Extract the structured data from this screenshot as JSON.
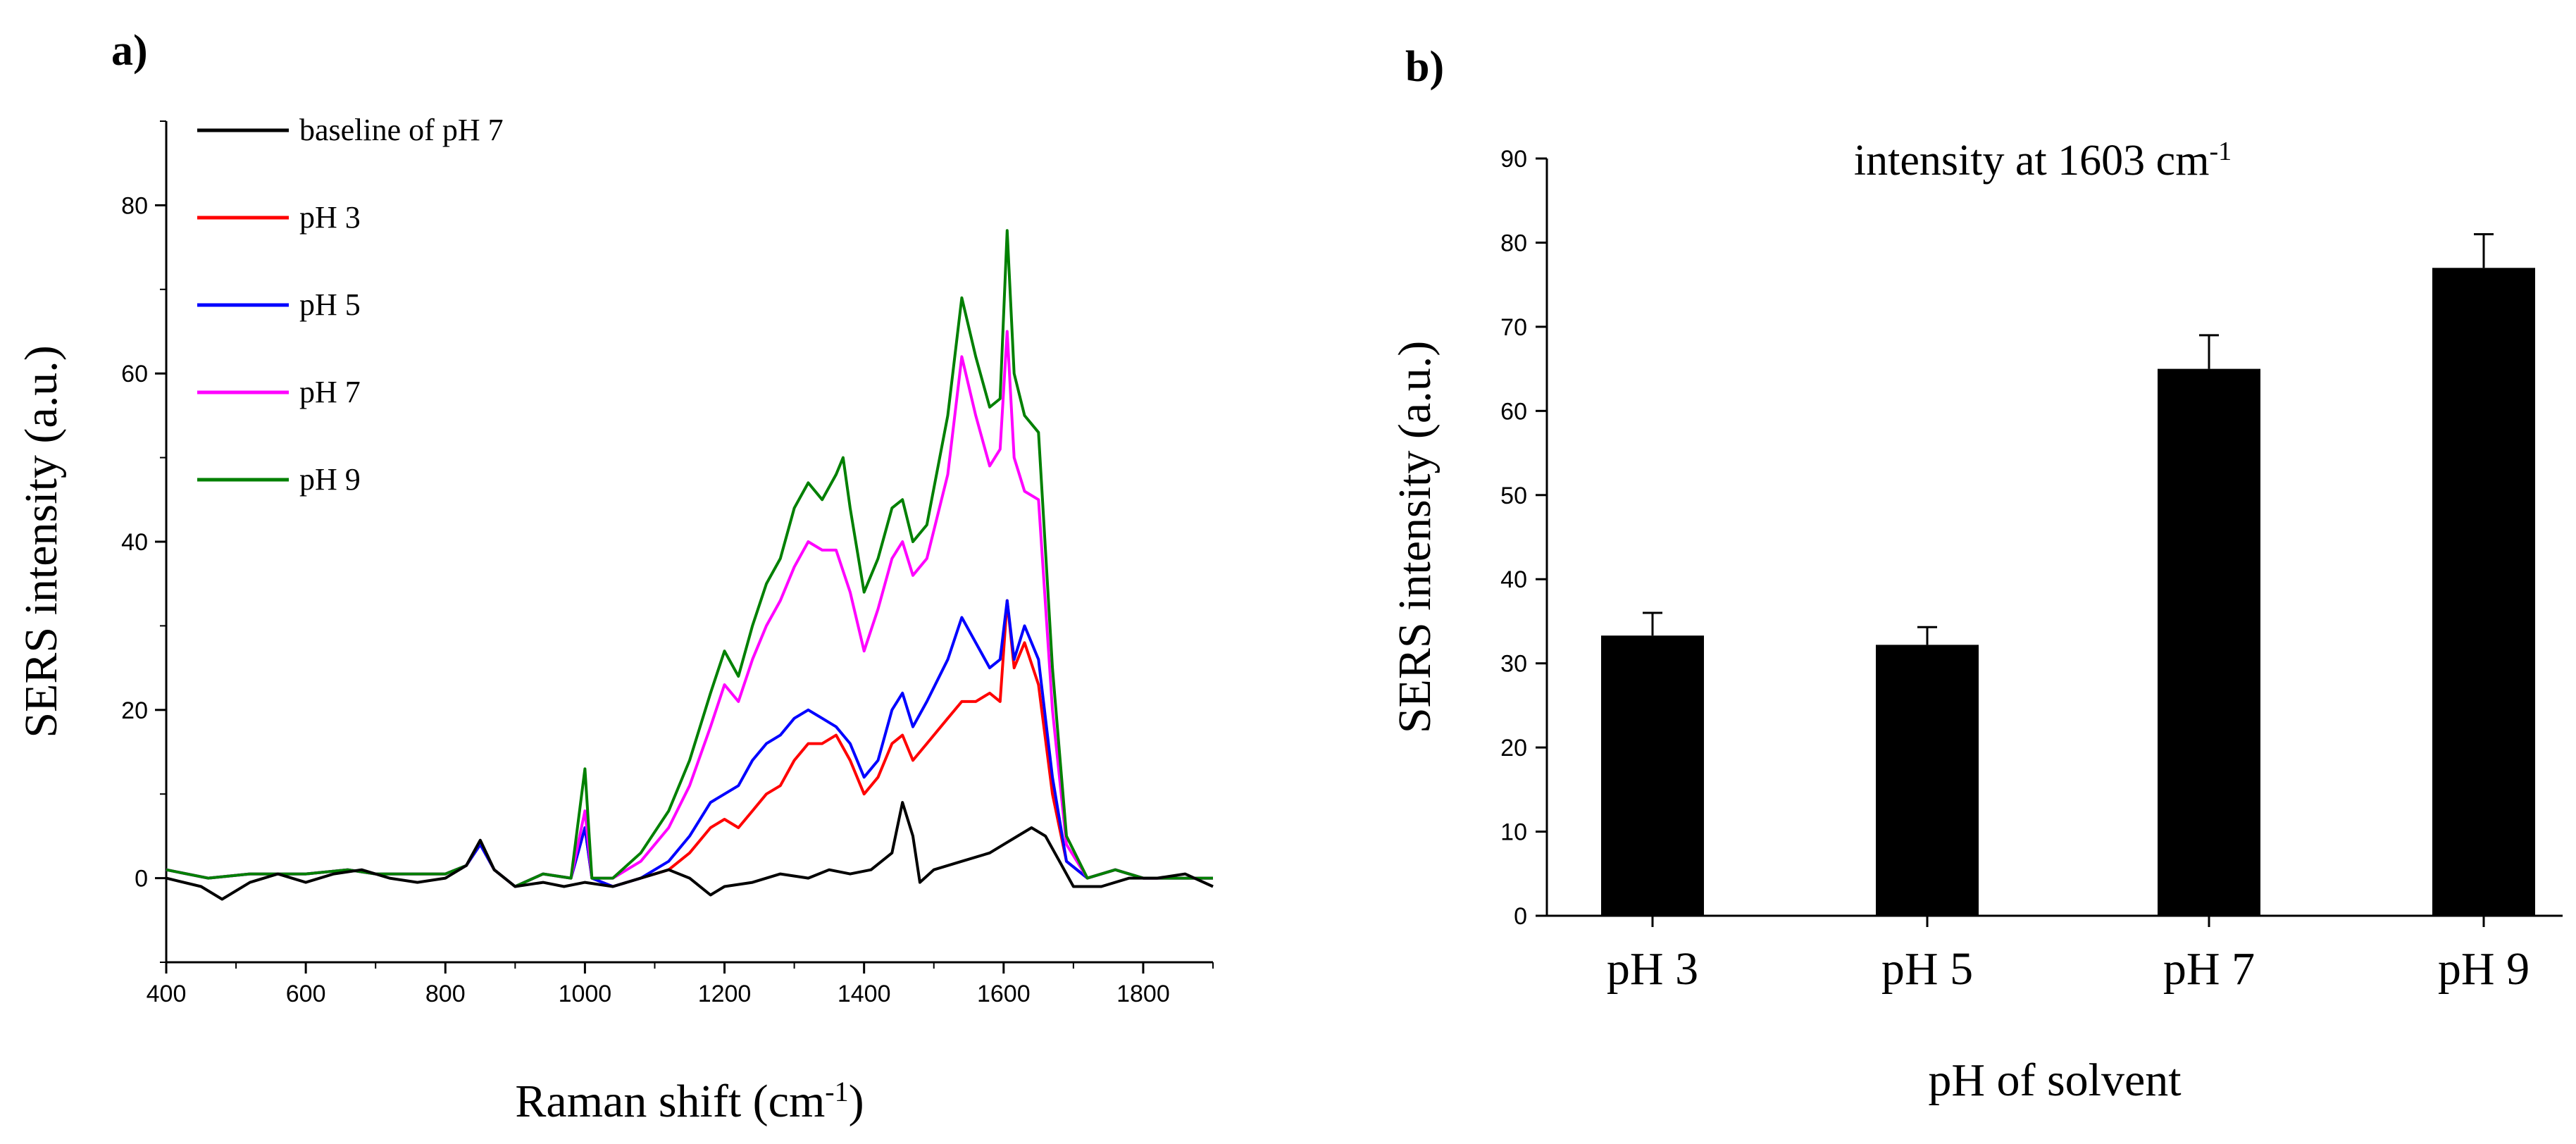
{
  "figure": {
    "label_a": "a)",
    "label_b": "b)"
  },
  "chart_data": [
    {
      "type": "line",
      "panel": "a",
      "title": "",
      "xlabel": "Raman  shift  (cm",
      "xlabel_sup": "-1",
      "xlabel_close": ")",
      "ylabel": "SERS intensity  (a.u.)",
      "xlim": [
        400,
        1900
      ],
      "ylim": [
        -10,
        90
      ],
      "xticks": [
        400,
        600,
        800,
        1000,
        1200,
        1400,
        1600,
        1800
      ],
      "yticks": [
        0,
        20,
        40,
        60,
        80
      ],
      "legend_position": "top-left",
      "series": [
        {
          "name": "baseline of pH 7",
          "color": "#000000",
          "points": [
            [
              400,
              0
            ],
            [
              450,
              -1
            ],
            [
              480,
              -2.5
            ],
            [
              520,
              -0.5
            ],
            [
              560,
              0.5
            ],
            [
              600,
              -0.5
            ],
            [
              640,
              0.5
            ],
            [
              680,
              1
            ],
            [
              720,
              0
            ],
            [
              760,
              -0.5
            ],
            [
              800,
              0
            ],
            [
              830,
              1.5
            ],
            [
              850,
              4.5
            ],
            [
              870,
              1
            ],
            [
              900,
              -1
            ],
            [
              940,
              -0.5
            ],
            [
              970,
              -1
            ],
            [
              1000,
              -0.5
            ],
            [
              1040,
              -1
            ],
            [
              1080,
              0
            ],
            [
              1120,
              1
            ],
            [
              1150,
              0
            ],
            [
              1180,
              -2
            ],
            [
              1200,
              -1
            ],
            [
              1240,
              -0.5
            ],
            [
              1280,
              0.5
            ],
            [
              1320,
              0
            ],
            [
              1350,
              1
            ],
            [
              1380,
              0.5
            ],
            [
              1410,
              1
            ],
            [
              1440,
              3
            ],
            [
              1455,
              9
            ],
            [
              1470,
              5
            ],
            [
              1480,
              -0.5
            ],
            [
              1500,
              1
            ],
            [
              1540,
              2
            ],
            [
              1580,
              3
            ],
            [
              1600,
              4
            ],
            [
              1620,
              5
            ],
            [
              1640,
              6
            ],
            [
              1660,
              5
            ],
            [
              1680,
              2
            ],
            [
              1700,
              -1
            ],
            [
              1740,
              -1
            ],
            [
              1780,
              0
            ],
            [
              1820,
              0
            ],
            [
              1860,
              0.5
            ],
            [
              1900,
              -1
            ]
          ]
        },
        {
          "name": "pH 3",
          "color": "#ff0000",
          "points": [
            [
              400,
              1
            ],
            [
              460,
              0
            ],
            [
              520,
              0.5
            ],
            [
              600,
              0.5
            ],
            [
              660,
              1
            ],
            [
              700,
              0.5
            ],
            [
              760,
              0.5
            ],
            [
              800,
              0.5
            ],
            [
              830,
              1.5
            ],
            [
              850,
              4
            ],
            [
              870,
              1
            ],
            [
              900,
              -1
            ],
            [
              940,
              0.5
            ],
            [
              980,
              0
            ],
            [
              1000,
              6
            ],
            [
              1010,
              0
            ],
            [
              1040,
              -1
            ],
            [
              1080,
              0
            ],
            [
              1120,
              1
            ],
            [
              1150,
              3
            ],
            [
              1180,
              6
            ],
            [
              1200,
              7
            ],
            [
              1220,
              6
            ],
            [
              1240,
              8
            ],
            [
              1260,
              10
            ],
            [
              1280,
              11
            ],
            [
              1300,
              14
            ],
            [
              1320,
              16
            ],
            [
              1340,
              16
            ],
            [
              1360,
              17
            ],
            [
              1380,
              14
            ],
            [
              1400,
              10
            ],
            [
              1420,
              12
            ],
            [
              1440,
              16
            ],
            [
              1455,
              17
            ],
            [
              1470,
              14
            ],
            [
              1490,
              16
            ],
            [
              1520,
              19
            ],
            [
              1540,
              21
            ],
            [
              1560,
              21
            ],
            [
              1580,
              22
            ],
            [
              1595,
              21
            ],
            [
              1605,
              33
            ],
            [
              1615,
              25
            ],
            [
              1630,
              28
            ],
            [
              1650,
              23
            ],
            [
              1670,
              10
            ],
            [
              1690,
              2
            ],
            [
              1720,
              0
            ],
            [
              1760,
              1
            ],
            [
              1800,
              0
            ],
            [
              1850,
              0
            ],
            [
              1900,
              0
            ]
          ]
        },
        {
          "name": "pH 5",
          "color": "#0000ff",
          "points": [
            [
              400,
              1
            ],
            [
              460,
              0
            ],
            [
              520,
              0.5
            ],
            [
              600,
              0.5
            ],
            [
              660,
              1
            ],
            [
              700,
              0.5
            ],
            [
              760,
              0.5
            ],
            [
              800,
              0.5
            ],
            [
              830,
              1.5
            ],
            [
              850,
              4
            ],
            [
              870,
              1
            ],
            [
              900,
              -1
            ],
            [
              940,
              0.5
            ],
            [
              980,
              0
            ],
            [
              1000,
              6
            ],
            [
              1010,
              0
            ],
            [
              1040,
              -1
            ],
            [
              1080,
              0
            ],
            [
              1120,
              2
            ],
            [
              1150,
              5
            ],
            [
              1180,
              9
            ],
            [
              1200,
              10
            ],
            [
              1220,
              11
            ],
            [
              1240,
              14
            ],
            [
              1260,
              16
            ],
            [
              1280,
              17
            ],
            [
              1300,
              19
            ],
            [
              1320,
              20
            ],
            [
              1340,
              19
            ],
            [
              1360,
              18
            ],
            [
              1380,
              16
            ],
            [
              1400,
              12
            ],
            [
              1420,
              14
            ],
            [
              1440,
              20
            ],
            [
              1455,
              22
            ],
            [
              1470,
              18
            ],
            [
              1490,
              21
            ],
            [
              1520,
              26
            ],
            [
              1540,
              31
            ],
            [
              1560,
              28
            ],
            [
              1580,
              25
            ],
            [
              1595,
              26
            ],
            [
              1605,
              33
            ],
            [
              1615,
              26
            ],
            [
              1630,
              30
            ],
            [
              1650,
              26
            ],
            [
              1670,
              12
            ],
            [
              1690,
              2
            ],
            [
              1720,
              0
            ],
            [
              1760,
              1
            ],
            [
              1800,
              0
            ],
            [
              1850,
              0
            ],
            [
              1900,
              0
            ]
          ]
        },
        {
          "name": "pH 7",
          "color": "#ff00ff",
          "points": [
            [
              400,
              1
            ],
            [
              460,
              0
            ],
            [
              520,
              0.5
            ],
            [
              600,
              0.5
            ],
            [
              660,
              1
            ],
            [
              700,
              0.5
            ],
            [
              760,
              0.5
            ],
            [
              800,
              0.5
            ],
            [
              830,
              1.5
            ],
            [
              850,
              4.5
            ],
            [
              870,
              1
            ],
            [
              900,
              -1
            ],
            [
              940,
              0.5
            ],
            [
              980,
              0
            ],
            [
              1000,
              8
            ],
            [
              1010,
              0
            ],
            [
              1040,
              0
            ],
            [
              1080,
              2
            ],
            [
              1120,
              6
            ],
            [
              1150,
              11
            ],
            [
              1180,
              18
            ],
            [
              1200,
              23
            ],
            [
              1220,
              21
            ],
            [
              1240,
              26
            ],
            [
              1260,
              30
            ],
            [
              1280,
              33
            ],
            [
              1300,
              37
            ],
            [
              1320,
              40
            ],
            [
              1340,
              39
            ],
            [
              1360,
              39
            ],
            [
              1380,
              34
            ],
            [
              1400,
              27
            ],
            [
              1420,
              32
            ],
            [
              1440,
              38
            ],
            [
              1455,
              40
            ],
            [
              1470,
              36
            ],
            [
              1490,
              38
            ],
            [
              1520,
              48
            ],
            [
              1540,
              62
            ],
            [
              1560,
              55
            ],
            [
              1580,
              49
            ],
            [
              1595,
              51
            ],
            [
              1605,
              65
            ],
            [
              1615,
              50
            ],
            [
              1630,
              46
            ],
            [
              1650,
              45
            ],
            [
              1670,
              20
            ],
            [
              1690,
              4
            ],
            [
              1720,
              0
            ],
            [
              1760,
              1
            ],
            [
              1800,
              0
            ],
            [
              1850,
              0
            ],
            [
              1900,
              0
            ]
          ]
        },
        {
          "name": "pH 9",
          "color": "#008000",
          "points": [
            [
              400,
              1
            ],
            [
              460,
              0
            ],
            [
              520,
              0.5
            ],
            [
              600,
              0.5
            ],
            [
              660,
              1
            ],
            [
              700,
              0.5
            ],
            [
              760,
              0.5
            ],
            [
              800,
              0.5
            ],
            [
              830,
              1.5
            ],
            [
              850,
              4.5
            ],
            [
              870,
              1
            ],
            [
              900,
              -1
            ],
            [
              940,
              0.5
            ],
            [
              980,
              0
            ],
            [
              1000,
              13
            ],
            [
              1010,
              0
            ],
            [
              1040,
              0
            ],
            [
              1080,
              3
            ],
            [
              1120,
              8
            ],
            [
              1150,
              14
            ],
            [
              1180,
              22
            ],
            [
              1200,
              27
            ],
            [
              1220,
              24
            ],
            [
              1240,
              30
            ],
            [
              1260,
              35
            ],
            [
              1280,
              38
            ],
            [
              1300,
              44
            ],
            [
              1320,
              47
            ],
            [
              1340,
              45
            ],
            [
              1360,
              48
            ],
            [
              1370,
              50
            ],
            [
              1380,
              44
            ],
            [
              1400,
              34
            ],
            [
              1420,
              38
            ],
            [
              1440,
              44
            ],
            [
              1455,
              45
            ],
            [
              1470,
              40
            ],
            [
              1490,
              42
            ],
            [
              1520,
              55
            ],
            [
              1540,
              69
            ],
            [
              1560,
              62
            ],
            [
              1580,
              56
            ],
            [
              1595,
              57
            ],
            [
              1605,
              77
            ],
            [
              1615,
              60
            ],
            [
              1630,
              55
            ],
            [
              1650,
              53
            ],
            [
              1670,
              25
            ],
            [
              1690,
              5
            ],
            [
              1720,
              0
            ],
            [
              1760,
              1
            ],
            [
              1800,
              0
            ],
            [
              1850,
              0
            ],
            [
              1900,
              0
            ]
          ]
        }
      ]
    },
    {
      "type": "bar",
      "panel": "b",
      "title": "intensity at 1603 cm",
      "title_sup": "-1",
      "xlabel": "pH of solvent",
      "ylabel": "SERS intensity  (a.u.)",
      "ylim": [
        0,
        90
      ],
      "yticks": [
        0,
        10,
        20,
        30,
        40,
        50,
        60,
        70,
        80,
        90
      ],
      "categories": [
        "pH 3",
        "pH 5",
        "pH 7",
        "pH 9"
      ],
      "values": [
        33.3,
        32.2,
        65,
        77
      ],
      "errors": [
        2.7,
        2.1,
        4,
        4
      ],
      "bar_color": "#000000"
    }
  ]
}
